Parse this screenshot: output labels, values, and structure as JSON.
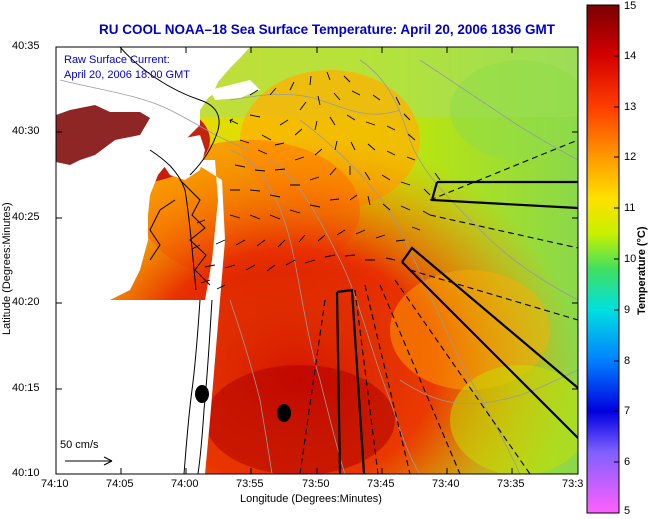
{
  "title": "RU COOL  NOAA–18  Sea Surface Temperature:  April 20, 2006 1836 GMT",
  "inset": {
    "line1": "Raw Surface Current:",
    "line2": "April 20, 2006 18:00 GMT"
  },
  "scale_label": "50 cm/s",
  "axes": {
    "xlabel": "Longitude (Degrees:Minutes)",
    "ylabel": "Latitude (Degrees:Minutes)",
    "x_ticks": [
      "74:10",
      "74:05",
      "74:00",
      "73:55",
      "73:50",
      "73:45",
      "73:40",
      "73:35",
      "73:3"
    ],
    "y_ticks": [
      "40:35",
      "40:30",
      "40:25",
      "40:20",
      "40:15",
      "40:10"
    ]
  },
  "colorbar": {
    "title": "Temperature (°C)",
    "ticks": [
      "15",
      "14",
      "13",
      "12",
      "11",
      "10",
      "9",
      "8",
      "7",
      "6",
      "5"
    ],
    "colors": {
      "top": "#8b0000",
      "red": "#e00000",
      "orange": "#ff7a00",
      "yellow": "#ffff00",
      "green": "#6bd44a",
      "cyan": "#00ffff",
      "blue": "#0000ff",
      "magenta": "#ff00ff"
    }
  }
}
